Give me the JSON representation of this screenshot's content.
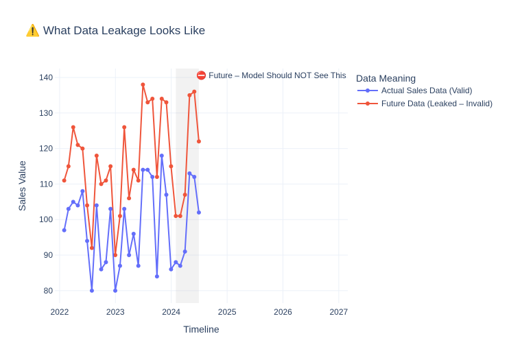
{
  "chart_data": {
    "type": "line",
    "title": "⚠️ What Data Leakage Looks Like",
    "xlabel": "Timeline",
    "ylabel": "Sales Value",
    "xlim": [
      "2021-12-01",
      "2027-03-01"
    ],
    "ylim": [
      76.5,
      142.5
    ],
    "x_ticks": [
      "2022",
      "2023",
      "2024",
      "2025",
      "2026",
      "2027"
    ],
    "y_ticks": [
      80,
      90,
      100,
      110,
      120,
      130,
      140
    ],
    "grid": true,
    "legend": {
      "title": "Data Meaning",
      "placement": "right"
    },
    "x": [
      "2022-01-31",
      "2022-02-28",
      "2022-03-31",
      "2022-04-30",
      "2022-05-31",
      "2022-06-30",
      "2022-07-31",
      "2022-08-31",
      "2022-09-30",
      "2022-10-31",
      "2022-11-30",
      "2022-12-31",
      "2023-01-31",
      "2023-02-28",
      "2023-03-31",
      "2023-04-30",
      "2023-05-31",
      "2023-06-30",
      "2023-07-31",
      "2023-08-31",
      "2023-09-30",
      "2023-10-31",
      "2023-11-30",
      "2023-12-31",
      "2024-01-31",
      "2024-02-29",
      "2024-03-31",
      "2024-04-30",
      "2024-05-31",
      "2024-06-30"
    ],
    "series": [
      {
        "name": "Actual Sales Data (Valid)",
        "color": "#636efa",
        "values": [
          97,
          103,
          105,
          104,
          108,
          94,
          80,
          104,
          86,
          88,
          103,
          80,
          87,
          103,
          90,
          96,
          87,
          114,
          114,
          112,
          84,
          118,
          107,
          86,
          88,
          87,
          91,
          113,
          112,
          102
        ]
      },
      {
        "name": "Future Data (Leaked – Invalid)",
        "color": "#ef553b",
        "values": [
          111,
          115,
          126,
          121,
          120,
          104,
          92,
          118,
          110,
          111,
          115,
          90,
          101,
          126,
          106,
          114,
          111,
          138,
          133,
          134,
          112,
          134,
          133,
          115,
          101,
          101,
          107,
          135,
          136,
          122
        ]
      }
    ],
    "shaded_region": {
      "x_start": "2024-01-31",
      "x_end": "2024-06-30",
      "color": "#bdbdbd",
      "label": "⛔ Future – Model Should NOT See This"
    }
  }
}
